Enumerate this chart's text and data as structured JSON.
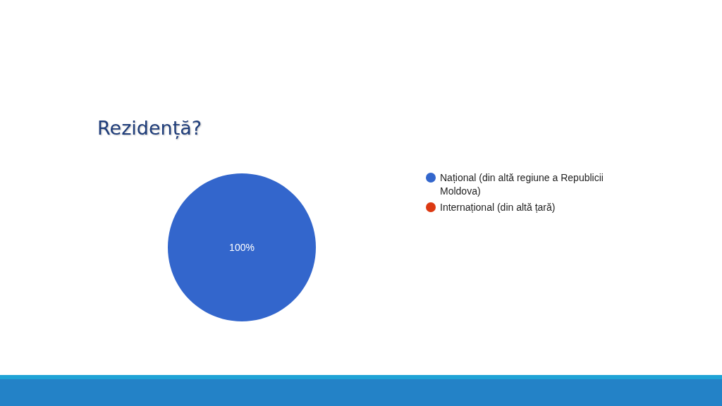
{
  "chart_data": {
    "type": "pie",
    "title": "Rezidență?",
    "categories": [
      "Național (din altă regiune a Republicii Moldova)",
      "Internațional (din altă țară)"
    ],
    "values": [
      100,
      0
    ],
    "colors": [
      "#3366cc",
      "#dc3912"
    ],
    "value_labels": [
      "100%",
      null
    ],
    "legend": "right"
  }
}
